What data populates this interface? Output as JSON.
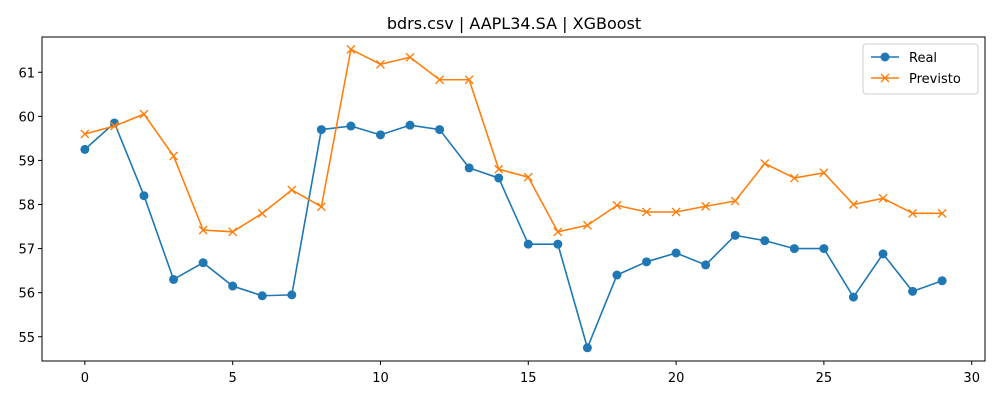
{
  "chart_data": {
    "type": "line",
    "title": "bdrs.csv | AAPL34.SA | XGBoost",
    "xlabel": "",
    "ylabel": "",
    "xlim": [
      -1.45,
      30.45
    ],
    "ylim": [
      54.45,
      61.8
    ],
    "xticks": [
      0,
      5,
      10,
      15,
      20,
      25,
      30
    ],
    "yticks": [
      55,
      56,
      57,
      58,
      59,
      60,
      61
    ],
    "legend_position": "top-right",
    "x": [
      0,
      1,
      2,
      3,
      4,
      5,
      6,
      7,
      8,
      9,
      10,
      11,
      12,
      13,
      14,
      15,
      16,
      17,
      18,
      19,
      20,
      21,
      22,
      23,
      24,
      25,
      26,
      27,
      28,
      29
    ],
    "series": [
      {
        "name": "Real",
        "color": "#1f77b4",
        "marker": "circle",
        "values": [
          59.25,
          59.85,
          58.2,
          56.3,
          56.68,
          56.15,
          55.93,
          55.95,
          59.7,
          59.78,
          59.58,
          59.8,
          59.7,
          58.83,
          58.6,
          57.1,
          57.1,
          54.75,
          56.4,
          56.7,
          56.9,
          56.63,
          57.3,
          57.18,
          57.0,
          57.0,
          55.9,
          56.88,
          56.03,
          56.27
        ]
      },
      {
        "name": "Previsto",
        "color": "#ff7f0e",
        "marker": "x",
        "values": [
          59.6,
          59.78,
          60.05,
          59.1,
          57.42,
          57.38,
          57.8,
          58.33,
          57.95,
          61.52,
          61.18,
          61.34,
          60.83,
          60.83,
          58.8,
          58.62,
          57.38,
          57.53,
          57.98,
          57.83,
          57.83,
          57.96,
          58.08,
          58.93,
          58.6,
          58.72,
          58.0,
          58.14,
          57.8,
          57.8
        ]
      }
    ]
  }
}
